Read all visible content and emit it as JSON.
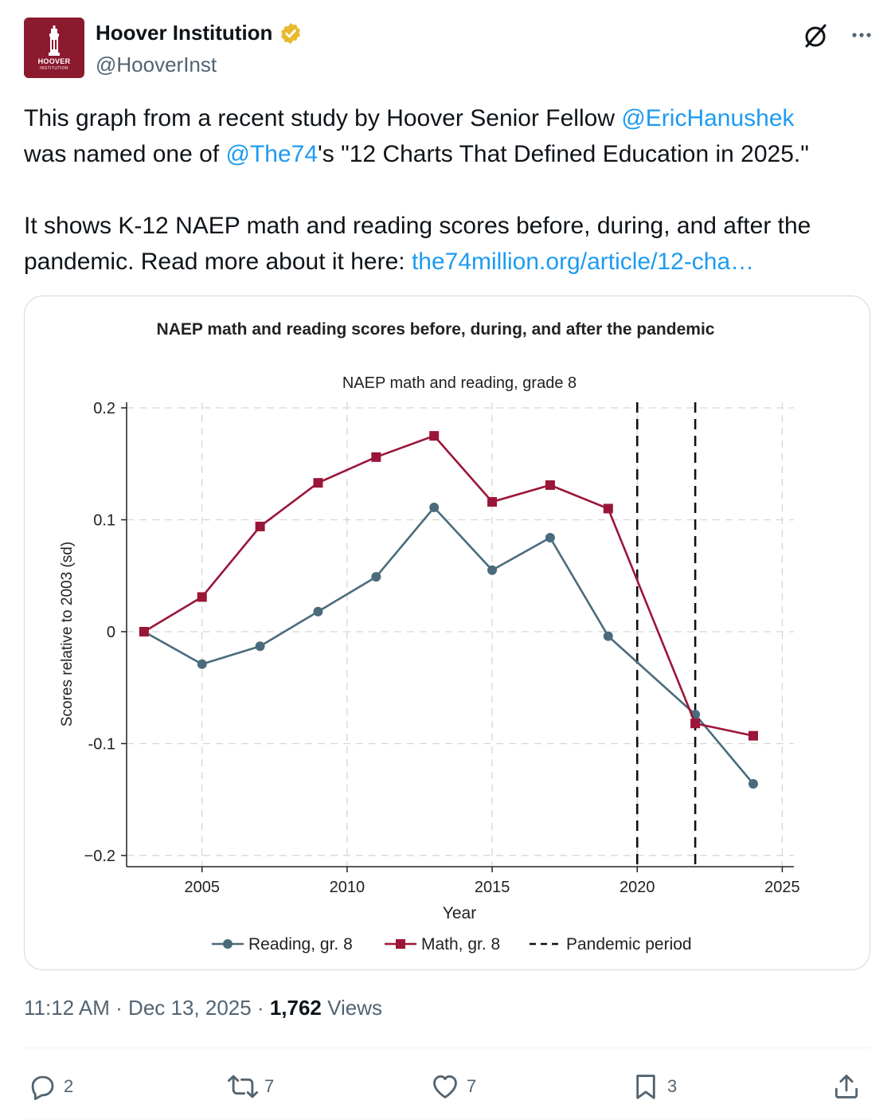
{
  "author": {
    "display_name": "Hoover Institution",
    "handle": "@HooverInst",
    "avatar_line1": "HOOVER",
    "avatar_line2": "INSTITUTION",
    "brand_color": "#8b1a2e"
  },
  "tweet": {
    "p1_a": "This graph from a recent study by Hoover Senior Fellow ",
    "p1_mention1": "@EricHanushek",
    "p1_b": " was named one of ",
    "p1_mention2": "@The74",
    "p1_c": "'s \"12 Charts That Defined Education in 2025.\"",
    "p2_a": "It shows K-12 NAEP math and reading scores before, during, and after the pandemic. Read more about it here: ",
    "p2_link": "the74million.org/article/12-cha…"
  },
  "meta": {
    "time": "11:12 AM",
    "date": "Dec 13, 2025",
    "views_count": "1,762",
    "views_label": "Views"
  },
  "actions": {
    "replies": "2",
    "reposts": "7",
    "likes": "7",
    "bookmarks": "3"
  },
  "chart_data": {
    "type": "line",
    "card_title": "NAEP math and reading scores before, during, and after the pandemic",
    "title": "NAEP math and reading, grade 8",
    "xlabel": "Year",
    "ylabel": "Scores relative to 2003 (sd)",
    "xlim": [
      2002.4,
      2025.4
    ],
    "ylim": [
      -0.21,
      0.205
    ],
    "xticks": [
      2005,
      2010,
      2015,
      2020,
      2025
    ],
    "yticks": [
      0.2,
      0.1,
      0,
      -0.1,
      -0.2
    ],
    "ytick_labels": [
      "0.2",
      "0.1",
      "0",
      "-0.1",
      "−0.2"
    ],
    "pandemic_period": [
      2020,
      2022
    ],
    "series": [
      {
        "name": "Reading, gr. 8",
        "color": "#4a6b7c",
        "marker": "circle",
        "x": [
          2003,
          2005,
          2007,
          2009,
          2011,
          2013,
          2015,
          2017,
          2019,
          2022,
          2024
        ],
        "y": [
          0,
          -0.029,
          -0.013,
          0.018,
          0.049,
          0.111,
          0.055,
          0.084,
          -0.004,
          -0.074,
          -0.136
        ]
      },
      {
        "name": "Math, gr. 8",
        "color": "#9a1638",
        "marker": "square",
        "x": [
          2003,
          2005,
          2007,
          2009,
          2011,
          2013,
          2015,
          2017,
          2019,
          2022,
          2024
        ],
        "y": [
          0,
          0.031,
          0.094,
          0.133,
          0.156,
          0.175,
          0.116,
          0.131,
          0.11,
          -0.082,
          -0.093
        ]
      }
    ],
    "legend": [
      "Reading, gr. 8",
      "Math, gr. 8",
      "Pandemic period"
    ]
  }
}
